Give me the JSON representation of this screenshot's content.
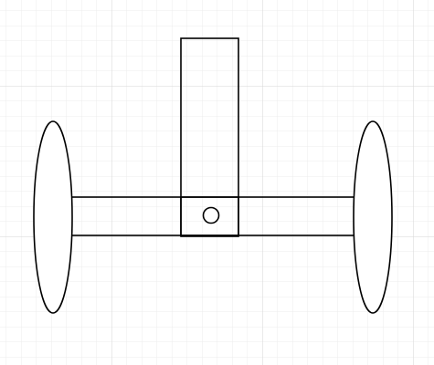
{
  "canvas": {
    "background_color": "#ffffff",
    "grid_minor_color": "#ececec",
    "grid_major_color": "#d6d6d6",
    "stroke_color": "#000000",
    "fill_color": "#ffffff"
  },
  "diagram": {
    "shapes": [
      {
        "name": "left-wheel",
        "kind": "ellipse"
      },
      {
        "name": "right-wheel",
        "kind": "ellipse"
      },
      {
        "name": "axle-bar",
        "kind": "rectangle"
      },
      {
        "name": "handle-post",
        "kind": "rectangle"
      },
      {
        "name": "center-hub-box",
        "kind": "rectangle"
      },
      {
        "name": "pivot-circle",
        "kind": "circle"
      }
    ]
  }
}
